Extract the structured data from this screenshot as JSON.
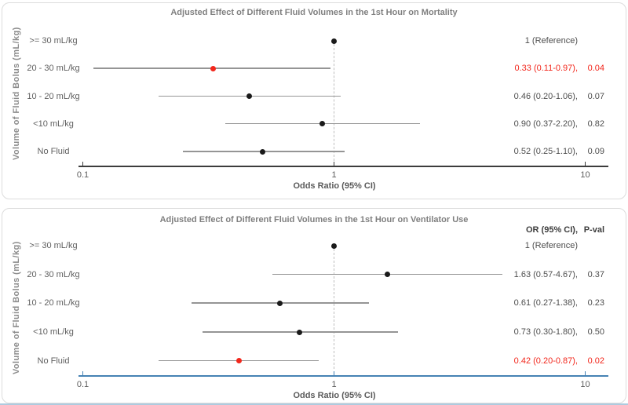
{
  "page": {
    "bottom_edge_color": "#aecbdf"
  },
  "colors": {
    "highlight": "#f2271c",
    "marker": "#1a1a1a",
    "ci_line": "#959595",
    "reference_line": "#bdbdbd"
  },
  "chart_data": [
    {
      "type": "scatter",
      "subtype": "forest-plot",
      "title": "Adjusted Effect of Different Fluid Volumes in the 1st Hour on Mortality",
      "xlabel": "Odds Ratio (95% CI)",
      "ylabel": "Volume of Fluid Bolus (mL/kg)",
      "x_scale": "log",
      "xlim": [
        0.1,
        10
      ],
      "x_ticks": [
        "0.1",
        "1",
        "10"
      ],
      "reference_x": 1,
      "axis_color": "#3c3c3c",
      "grid": false,
      "col_headers": null,
      "categories": [
        ">= 30 mL/kg",
        "20 - 30 mL/kg",
        "10 - 20 mL/kg",
        "<10 mL/kg",
        "No Fluid"
      ],
      "rows": [
        {
          "label": ">= 30 mL/kg",
          "or": 1,
          "ci_low": null,
          "ci_high": null,
          "or_text": "1 (Reference)",
          "p_text": "",
          "significant": false
        },
        {
          "label": "20 - 30 mL/kg",
          "or": 0.33,
          "ci_low": 0.11,
          "ci_high": 0.97,
          "or_text": "0.33 (0.11-0.97),",
          "p_text": "0.04",
          "significant": true
        },
        {
          "label": "10 - 20 mL/kg",
          "or": 0.46,
          "ci_low": 0.2,
          "ci_high": 1.06,
          "or_text": "0.46 (0.20-1.06),",
          "p_text": "0.07",
          "significant": false
        },
        {
          "label": "<10 mL/kg",
          "or": 0.9,
          "ci_low": 0.37,
          "ci_high": 2.2,
          "or_text": "0.90 (0.37-2.20),",
          "p_text": "0.82",
          "significant": false
        },
        {
          "label": "No Fluid",
          "or": 0.52,
          "ci_low": 0.25,
          "ci_high": 1.1,
          "or_text": "0.52 (0.25-1.10),",
          "p_text": "0.09",
          "significant": false
        }
      ]
    },
    {
      "type": "scatter",
      "subtype": "forest-plot",
      "title": "Adjusted Effect of Different Fluid Volumes in the 1st Hour on Ventilator Use",
      "xlabel": "Odds Ratio (95% CI)",
      "ylabel": "Volume of Fluid Bolus (mL/kg)",
      "x_scale": "log",
      "xlim": [
        0.1,
        10
      ],
      "x_ticks": [
        "0.1",
        "1",
        "10"
      ],
      "reference_x": 1,
      "axis_color": "#4682b4",
      "grid": false,
      "col_headers": {
        "or": "OR (95% CI),",
        "p": "P-val"
      },
      "categories": [
        ">= 30 mL/kg",
        "20 - 30 mL/kg",
        "10 - 20 mL/kg",
        "<10 mL/kg",
        "No Fluid"
      ],
      "rows": [
        {
          "label": ">= 30 mL/kg",
          "or": 1,
          "ci_low": null,
          "ci_high": null,
          "or_text": "1 (Reference)",
          "p_text": "",
          "significant": false
        },
        {
          "label": "20 - 30 mL/kg",
          "or": 1.63,
          "ci_low": 0.57,
          "ci_high": 4.67,
          "or_text": "1.63 (0.57-4.67),",
          "p_text": "0.37",
          "significant": false
        },
        {
          "label": "10 - 20 mL/kg",
          "or": 0.61,
          "ci_low": 0.27,
          "ci_high": 1.38,
          "or_text": "0.61 (0.27-1.38),",
          "p_text": "0.23",
          "significant": false
        },
        {
          "label": "<10 mL/kg",
          "or": 0.73,
          "ci_low": 0.3,
          "ci_high": 1.8,
          "or_text": "0.73 (0.30-1.80),",
          "p_text": "0.50",
          "significant": false
        },
        {
          "label": "No Fluid",
          "or": 0.42,
          "ci_low": 0.2,
          "ci_high": 0.87,
          "or_text": "0.42 (0.20-0.87),",
          "p_text": "0.02",
          "significant": true
        }
      ]
    }
  ]
}
